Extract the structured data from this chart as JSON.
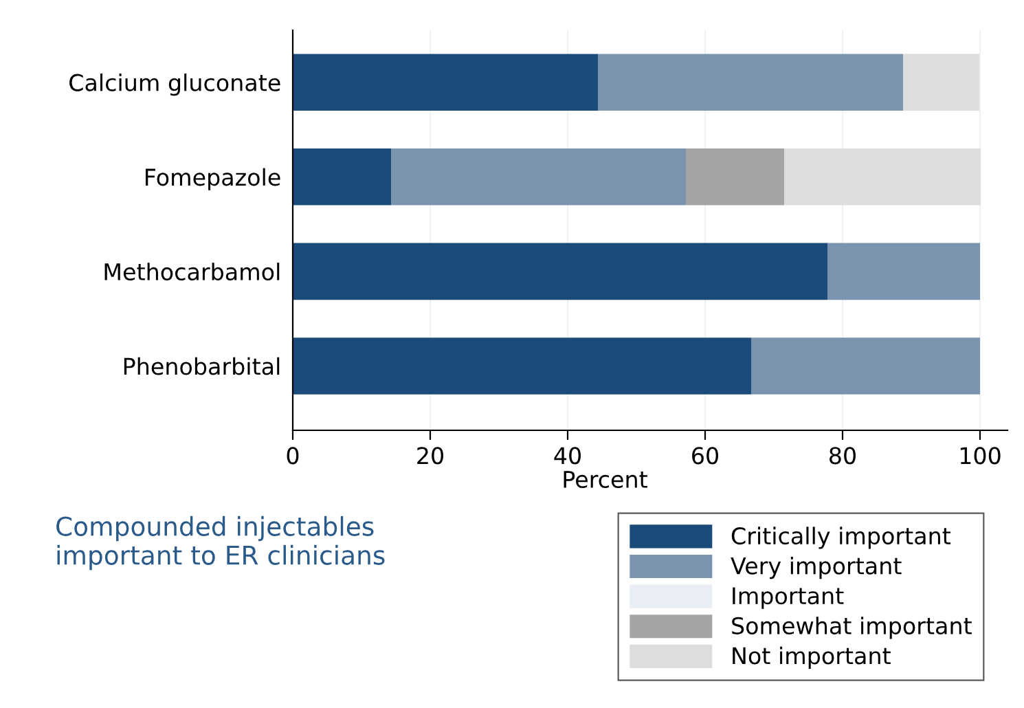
{
  "chart_data": {
    "type": "bar",
    "orientation": "horizontal",
    "stacked": true,
    "title": "Compounded injectables\nimportant to ER clinicians",
    "xlabel": "Percent",
    "categories": [
      "Calcium gluconate",
      "Fomepazole",
      "Methocarbamol",
      "Phenobarbital"
    ],
    "series": [
      {
        "name": "Critically important",
        "color": "#1b4b7b",
        "values": [
          44.4,
          14.3,
          77.8,
          66.7
        ]
      },
      {
        "name": "Very important",
        "color": "#7a93ae",
        "values": [
          44.4,
          42.9,
          22.2,
          33.3
        ]
      },
      {
        "name": "Important",
        "color": "#e8eef4",
        "values": [
          0,
          0,
          0,
          0
        ]
      },
      {
        "name": "Somewhat important",
        "color": "#a4a4a4",
        "values": [
          0,
          14.3,
          0,
          0
        ]
      },
      {
        "name": "Not important",
        "color": "#dddddd",
        "values": [
          11.1,
          28.6,
          0,
          0
        ]
      }
    ],
    "xlim": [
      0,
      104
    ],
    "xticks": [
      0,
      20,
      40,
      60,
      80,
      100
    ],
    "grid": "x",
    "legend": "bottom right"
  }
}
